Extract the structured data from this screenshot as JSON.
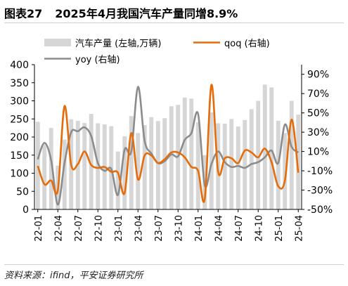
{
  "figure": {
    "label": "图表27",
    "title": "2025年4月我国汽车产量同增8.9%",
    "source": "资料来源：ifind，平安证券研究所"
  },
  "colors": {
    "bar": "#d6d6d6",
    "qoq": "#e46c0a",
    "yoy": "#8c8c8c",
    "axis": "#000000",
    "text": "#000000"
  },
  "chart_data": {
    "type": "bar+line",
    "categories": [
      "22-01",
      "22-02",
      "22-03",
      "22-04",
      "22-05",
      "22-06",
      "22-07",
      "22-08",
      "22-09",
      "22-10",
      "22-11",
      "22-12",
      "23-01",
      "23-02",
      "23-03",
      "23-04",
      "23-05",
      "23-06",
      "23-07",
      "23-08",
      "23-09",
      "23-10",
      "23-11",
      "23-12",
      "24-01",
      "24-02",
      "24-03",
      "24-04",
      "24-05",
      "24-06",
      "24-07",
      "24-08",
      "24-09",
      "24-10",
      "24-11",
      "24-12",
      "25-01",
      "25-02",
      "25-03",
      "25-04"
    ],
    "xticks": [
      "22-01",
      "22-04",
      "22-07",
      "22-10",
      "23-01",
      "23-04",
      "23-07",
      "23-10",
      "24-01",
      "24-04",
      "24-07",
      "24-10",
      "25-01",
      "25-04"
    ],
    "left_axis": {
      "min": 0,
      "max": 400,
      "step": 50,
      "ticks": [
        "0",
        "50",
        "100",
        "150",
        "200",
        "250",
        "300",
        "350",
        "400"
      ]
    },
    "right_axis": {
      "min": -50,
      "max": 100,
      "ticks": [
        "-50%",
        "-30%",
        "-10%",
        "10%",
        "30%",
        "50%",
        "70%",
        "90%"
      ],
      "tick_values": [
        -50,
        -30,
        -10,
        10,
        30,
        50,
        70,
        90
      ]
    },
    "series": [
      {
        "name": "汽车产量 (左轴,万辆)",
        "type": "bar",
        "axis": "left",
        "values": [
          242,
          182,
          225,
          121,
          193,
          249,
          245,
          239,
          264,
          238,
          235,
          230,
          160,
          202,
          258,
          211,
          233,
          255,
          244,
          252,
          285,
          289,
          309,
          306,
          241,
          150,
          268,
          238,
          237,
          250,
          229,
          247,
          277,
          300,
          345,
          337,
          245,
          211,
          300,
          262
        ]
      },
      {
        "name": "qoq (右轴)",
        "type": "line",
        "axis": "right",
        "values": [
          -5,
          -24,
          -20,
          -30,
          57,
          -4,
          -3,
          10,
          -4,
          -7,
          -6,
          -11,
          -12,
          -33,
          29,
          -19,
          6,
          6,
          -2,
          2,
          9,
          9,
          4,
          -6,
          -10,
          -39,
          79,
          -11,
          3,
          3,
          -2,
          11,
          9,
          4,
          13,
          -1,
          -26,
          -20,
          43,
          -12
        ]
      },
      {
        "name": "yoy (右轴)",
        "type": "line",
        "axis": "right",
        "values": [
          2,
          19,
          1,
          -45,
          -2,
          30,
          31,
          35,
          26,
          -2,
          -10,
          -8,
          -35,
          12,
          10,
          77,
          21,
          8,
          -2,
          0,
          7,
          5,
          22,
          29,
          49,
          -25,
          -3,
          10,
          -1,
          -6,
          -5,
          -7,
          -3,
          -1,
          4,
          11,
          -2,
          38,
          15,
          9
        ]
      }
    ],
    "legend_placement": "top"
  }
}
